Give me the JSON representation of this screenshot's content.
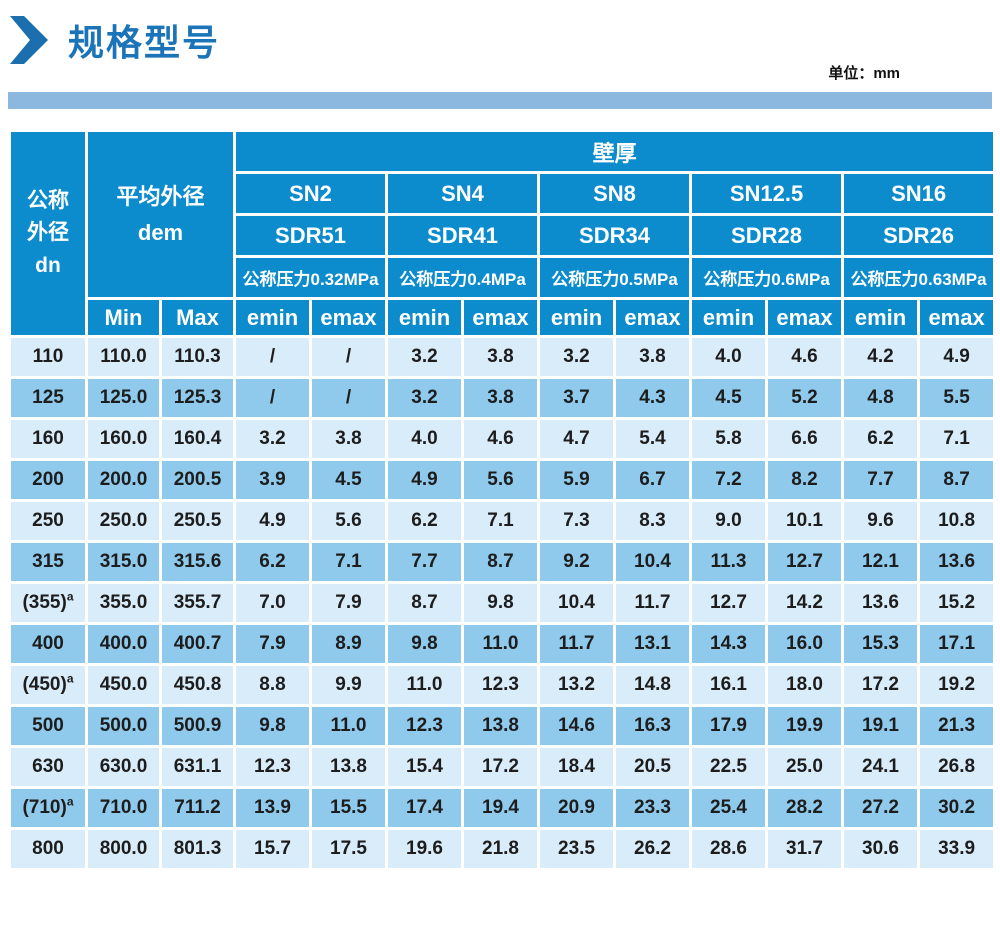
{
  "page": {
    "title": "规格型号",
    "unit_label": "单位：mm",
    "colors": {
      "header_blue": "#0c8bcd",
      "row_light": "#d9ecf9",
      "row_dark": "#8fcaec",
      "title_blue": "#1c74b8",
      "bar_blue": "#8cb8df",
      "cell_text": "#1d1d1d"
    }
  },
  "table": {
    "corner": {
      "line1": "公称",
      "line2": "外径",
      "line3": "dn"
    },
    "dem": {
      "line1": "平均外径",
      "line2": "dem"
    },
    "wall_label": "壁厚",
    "min_label": "Min",
    "max_label": "Max",
    "emin_label": "emin",
    "emax_label": "emax",
    "groups": [
      {
        "sn": "SN2",
        "sdr": "SDR51",
        "pressure": "公称压力0.32MPa"
      },
      {
        "sn": "SN4",
        "sdr": "SDR41",
        "pressure": "公称压力0.4MPa"
      },
      {
        "sn": "SN8",
        "sdr": "SDR34",
        "pressure": "公称压力0.5MPa"
      },
      {
        "sn": "SN12.5",
        "sdr": "SDR28",
        "pressure": "公称压力0.6MPa"
      },
      {
        "sn": "SN16",
        "sdr": "SDR26",
        "pressure": "公称压力0.63MPa"
      }
    ],
    "rows": [
      {
        "dn": "110",
        "sup": "",
        "min": "110.0",
        "max": "110.3",
        "values": [
          "/",
          "/",
          "3.2",
          "3.8",
          "3.2",
          "3.8",
          "4.0",
          "4.6",
          "4.2",
          "4.9"
        ]
      },
      {
        "dn": "125",
        "sup": "",
        "min": "125.0",
        "max": "125.3",
        "values": [
          "/",
          "/",
          "3.2",
          "3.8",
          "3.7",
          "4.3",
          "4.5",
          "5.2",
          "4.8",
          "5.5"
        ]
      },
      {
        "dn": "160",
        "sup": "",
        "min": "160.0",
        "max": "160.4",
        "values": [
          "3.2",
          "3.8",
          "4.0",
          "4.6",
          "4.7",
          "5.4",
          "5.8",
          "6.6",
          "6.2",
          "7.1"
        ]
      },
      {
        "dn": "200",
        "sup": "",
        "min": "200.0",
        "max": "200.5",
        "values": [
          "3.9",
          "4.5",
          "4.9",
          "5.6",
          "5.9",
          "6.7",
          "7.2",
          "8.2",
          "7.7",
          "8.7"
        ]
      },
      {
        "dn": "250",
        "sup": "",
        "min": "250.0",
        "max": "250.5",
        "values": [
          "4.9",
          "5.6",
          "6.2",
          "7.1",
          "7.3",
          "8.3",
          "9.0",
          "10.1",
          "9.6",
          "10.8"
        ]
      },
      {
        "dn": "315",
        "sup": "",
        "min": "315.0",
        "max": "315.6",
        "values": [
          "6.2",
          "7.1",
          "7.7",
          "8.7",
          "9.2",
          "10.4",
          "11.3",
          "12.7",
          "12.1",
          "13.6"
        ]
      },
      {
        "dn": "(355)",
        "sup": "a",
        "min": "355.0",
        "max": "355.7",
        "values": [
          "7.0",
          "7.9",
          "8.7",
          "9.8",
          "10.4",
          "11.7",
          "12.7",
          "14.2",
          "13.6",
          "15.2"
        ]
      },
      {
        "dn": "400",
        "sup": "",
        "min": "400.0",
        "max": "400.7",
        "values": [
          "7.9",
          "8.9",
          "9.8",
          "11.0",
          "11.7",
          "13.1",
          "14.3",
          "16.0",
          "15.3",
          "17.1"
        ]
      },
      {
        "dn": "(450)",
        "sup": "a",
        "min": "450.0",
        "max": "450.8",
        "values": [
          "8.8",
          "9.9",
          "11.0",
          "12.3",
          "13.2",
          "14.8",
          "16.1",
          "18.0",
          "17.2",
          "19.2"
        ]
      },
      {
        "dn": "500",
        "sup": "",
        "min": "500.0",
        "max": "500.9",
        "values": [
          "9.8",
          "11.0",
          "12.3",
          "13.8",
          "14.6",
          "16.3",
          "17.9",
          "19.9",
          "19.1",
          "21.3"
        ]
      },
      {
        "dn": "630",
        "sup": "",
        "min": "630.0",
        "max": "631.1",
        "values": [
          "12.3",
          "13.8",
          "15.4",
          "17.2",
          "18.4",
          "20.5",
          "22.5",
          "25.0",
          "24.1",
          "26.8"
        ]
      },
      {
        "dn": "(710)",
        "sup": "a",
        "min": "710.0",
        "max": "711.2",
        "values": [
          "13.9",
          "15.5",
          "17.4",
          "19.4",
          "20.9",
          "23.3",
          "25.4",
          "28.2",
          "27.2",
          "30.2"
        ]
      },
      {
        "dn": "800",
        "sup": "",
        "min": "800.0",
        "max": "801.3",
        "values": [
          "15.7",
          "17.5",
          "19.6",
          "21.8",
          "23.5",
          "26.2",
          "28.6",
          "31.7",
          "30.6",
          "33.9"
        ]
      }
    ]
  }
}
